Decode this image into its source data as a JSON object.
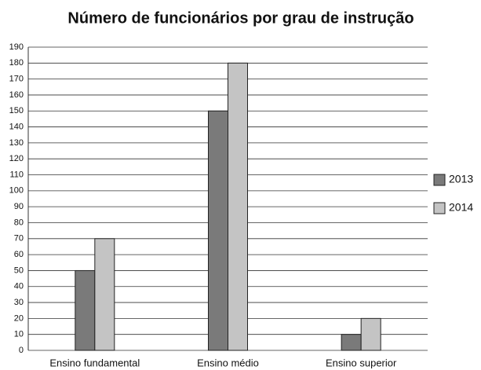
{
  "chart_data": {
    "type": "bar",
    "title": "Número de funcionários por grau de instrução",
    "categories": [
      "Ensino fundamental",
      "Ensino médio",
      "Ensino superior"
    ],
    "series": [
      {
        "name": "2013",
        "color": "#7a7a7a",
        "values": [
          50,
          150,
          10
        ]
      },
      {
        "name": "2014",
        "color": "#c4c4c4",
        "values": [
          70,
          180,
          20
        ]
      }
    ],
    "ylim": [
      0,
      190
    ],
    "yticks": [
      0,
      10,
      20,
      30,
      40,
      50,
      60,
      70,
      80,
      90,
      100,
      110,
      120,
      130,
      140,
      150,
      160,
      170,
      180,
      190
    ],
    "grid": true,
    "legend": "right"
  }
}
